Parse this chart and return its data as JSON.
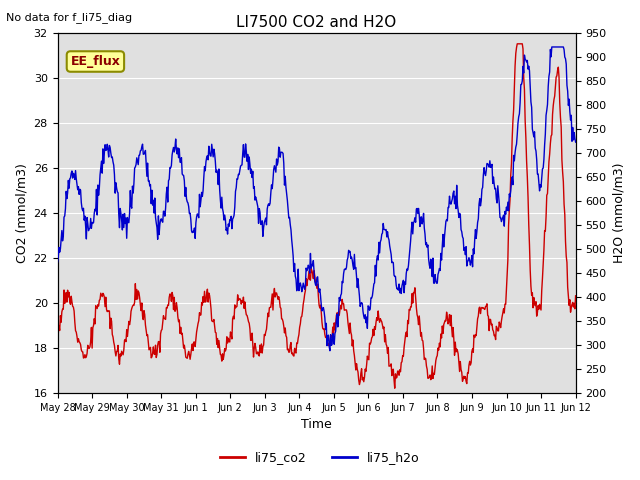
{
  "title": "LI7500 CO2 and H2O",
  "top_left_text": "No data for f_li75_diag",
  "xlabel": "Time",
  "ylabel_left": "CO2 (mmol/m3)",
  "ylabel_right": "H2O (mmol/m3)",
  "ylim_left": [
    16,
    32
  ],
  "ylim_right": [
    200,
    950
  ],
  "yticks_left": [
    16,
    18,
    20,
    22,
    24,
    26,
    28,
    30,
    32
  ],
  "yticks_right": [
    200,
    250,
    300,
    350,
    400,
    450,
    500,
    550,
    600,
    650,
    700,
    750,
    800,
    850,
    900,
    950
  ],
  "xtick_labels": [
    "May 28",
    "May 29",
    "May 30",
    "May 31",
    "Jun 1",
    "Jun 2",
    "Jun 3",
    "Jun 4",
    "Jun 5",
    "Jun 6",
    "Jun 7",
    "Jun 8",
    "Jun 9",
    "Jun 10",
    "Jun 11",
    "Jun 12"
  ],
  "annotation_box_text": "EE_flux",
  "annotation_box_color": "#ffff99",
  "annotation_box_edgecolor": "#8B8B00",
  "annotation_text_color": "#8B0000",
  "co2_color": "#cc0000",
  "h2o_color": "#0000cc",
  "legend_co2_label": "li75_co2",
  "legend_h2o_label": "li75_h2o",
  "background_color": "#e0e0e0",
  "grid_color": "#ffffff",
  "linewidth": 1.0
}
